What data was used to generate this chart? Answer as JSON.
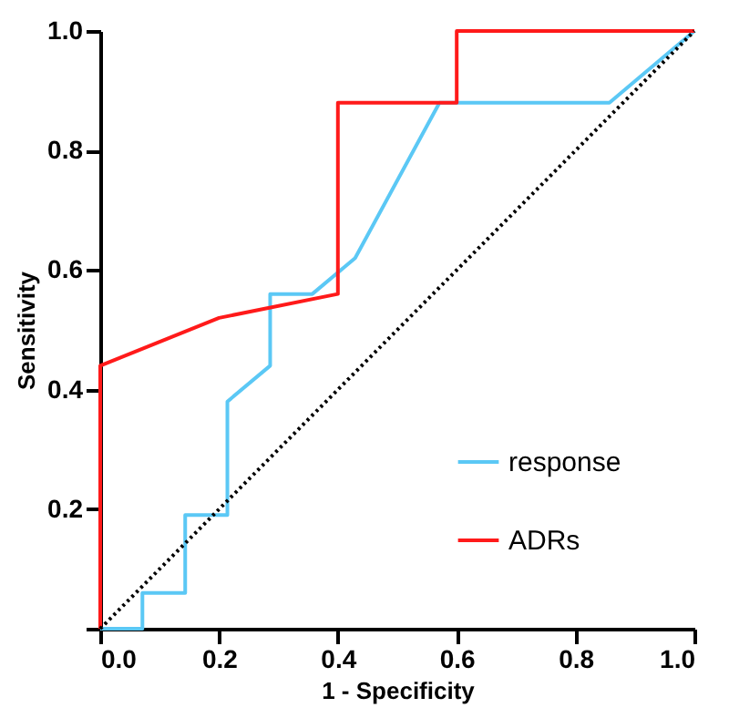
{
  "chart_data": {
    "type": "line",
    "xlabel": "1 - Specificity",
    "ylabel": "Sensitivity",
    "xlim": [
      0,
      1
    ],
    "ylim": [
      0,
      1
    ],
    "xticks": [
      {
        "value": 0,
        "label": "0.0"
      },
      0.2,
      0.4,
      0.6,
      0.8,
      {
        "value": 1,
        "label": "1.0"
      }
    ],
    "yticks": [
      {
        "value": 0,
        "label": null
      },
      0.2,
      0.4,
      0.6,
      0.8,
      {
        "value": 1,
        "label": "1.0"
      }
    ],
    "grid": false,
    "legend": "bottom right",
    "marker": "none",
    "series": [
      {
        "name": "response",
        "color": "#5bc8f5",
        "line_style": "solid",
        "x": [
          0,
          0.071,
          0.071,
          0.143,
          0.143,
          0.214,
          0.214,
          0.286,
          0.286,
          0.357,
          0.429,
          0.571,
          0.857,
          1
        ],
        "values": [
          0,
          0,
          0.06,
          0.06,
          0.19,
          0.19,
          0.38,
          0.44,
          0.56,
          0.56,
          0.62,
          0.88,
          0.88,
          1
        ]
      },
      {
        "name": "ADRs",
        "color": "#ff1a1a",
        "line_style": "solid",
        "x": [
          0,
          0,
          0.2,
          0.4,
          0.4,
          0.6,
          0.6,
          1
        ],
        "values": [
          0,
          0.44,
          0.52,
          0.56,
          0.88,
          0.88,
          1,
          1
        ]
      },
      {
        "color": "#000000",
        "line_style": "dotted",
        "x": [
          0,
          1
        ],
        "values": [
          0,
          1
        ]
      }
    ]
  }
}
